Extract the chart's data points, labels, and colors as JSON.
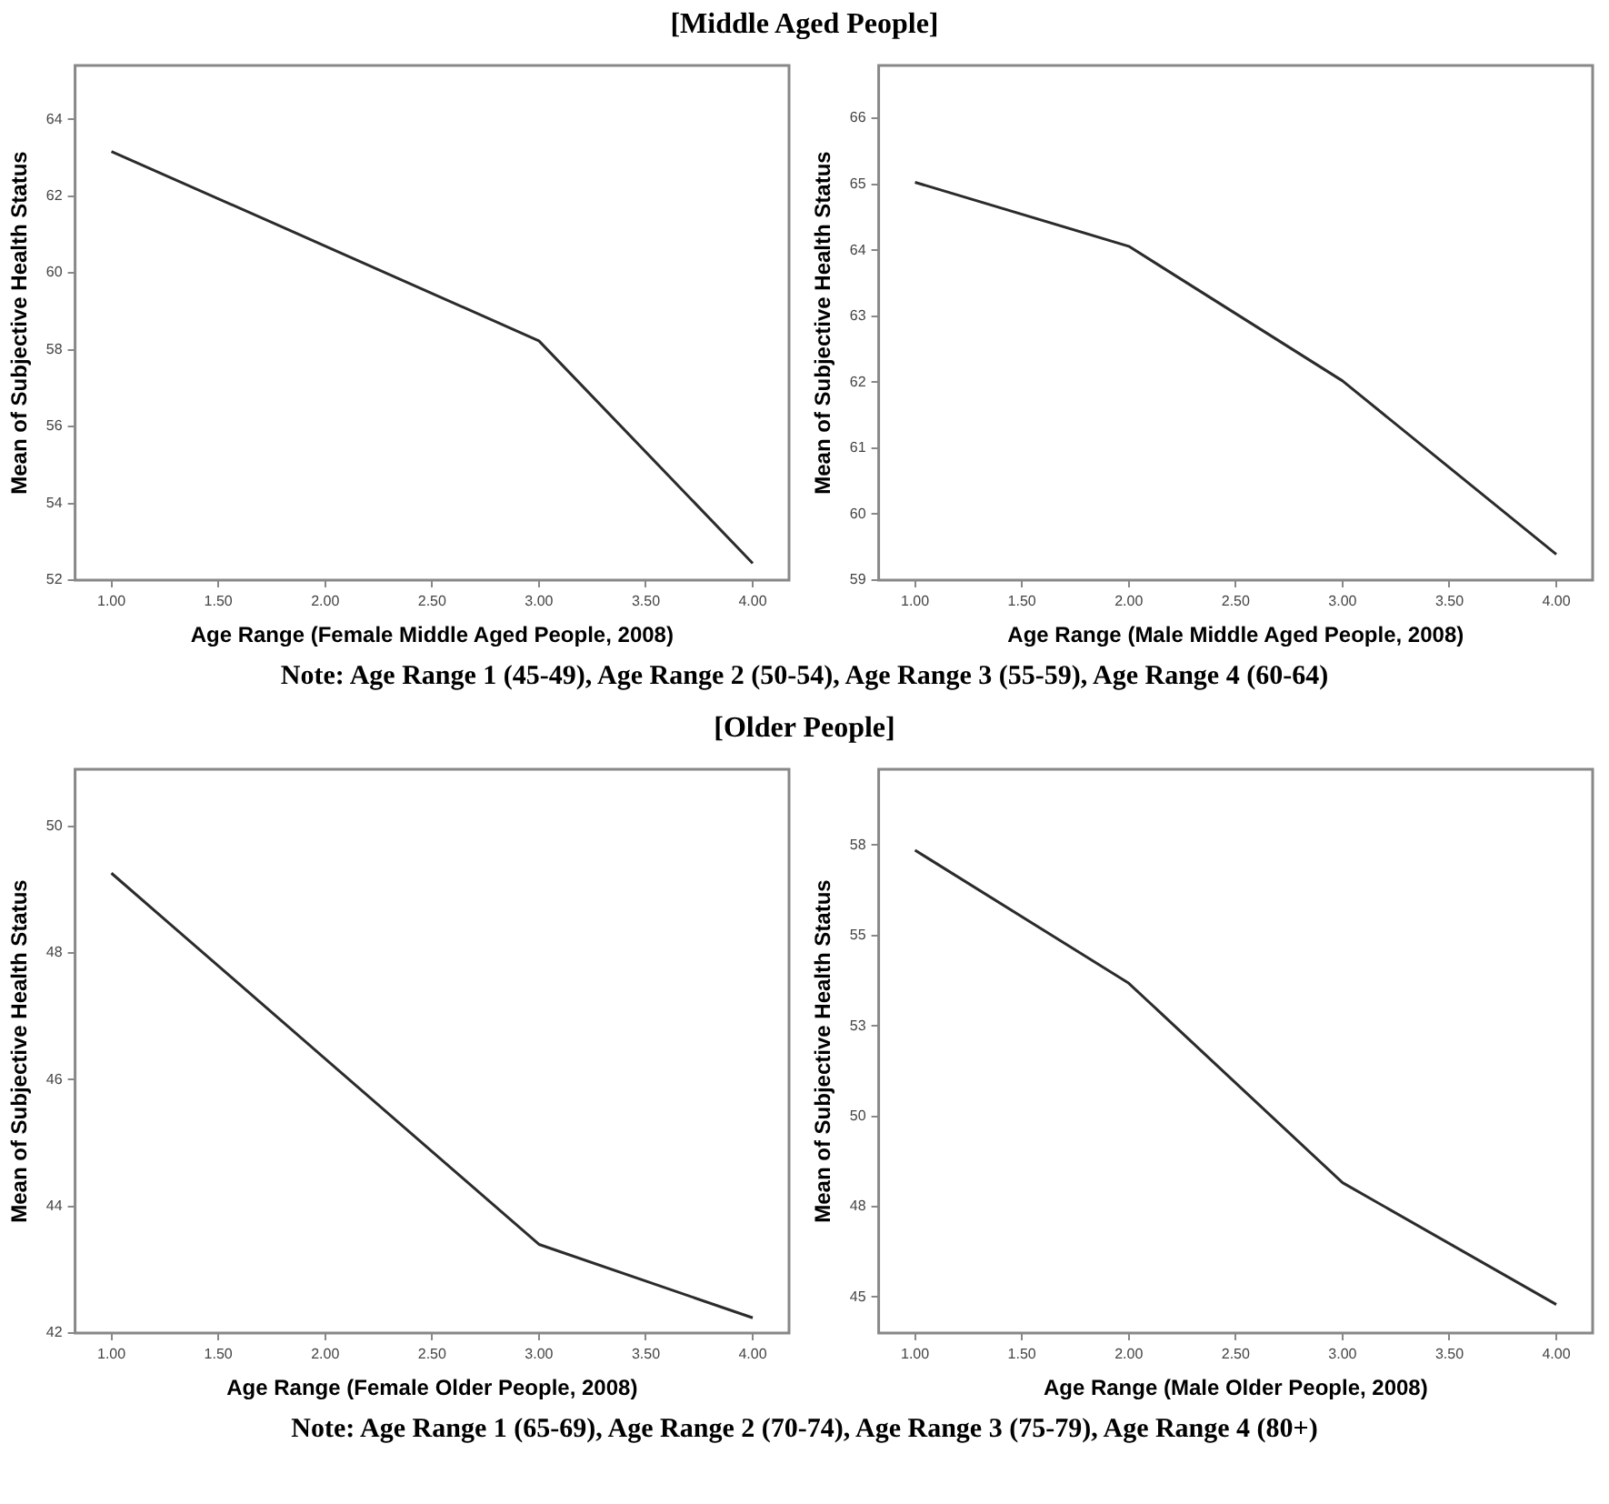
{
  "chart_data": [
    {
      "type": "line",
      "title": "[Middle Aged People]",
      "xlabel": "Age Range (Female Middle Aged People, 2008)",
      "ylabel": "Mean of Subjective Health Status",
      "x": [
        1,
        2,
        3,
        4
      ],
      "series": [
        {
          "color": "#2b2b2b",
          "values": [
            63.16,
            60.7,
            58.23,
            52.44
          ]
        }
      ],
      "xlim": [
        0.83,
        4.17
      ],
      "xticks": [
        {
          "value": 1,
          "label": "1.00"
        },
        {
          "value": 1.5,
          "label": "1.50"
        },
        {
          "value": 2,
          "label": "2.00"
        },
        {
          "value": 2.5,
          "label": "2.50"
        },
        {
          "value": 3,
          "label": "3.00"
        },
        {
          "value": 3.5,
          "label": "3.50"
        },
        {
          "value": 4,
          "label": "4.00"
        }
      ],
      "ylim": [
        52,
        65.4
      ],
      "yticks": [
        52,
        54,
        56,
        58,
        60,
        62,
        64
      ],
      "grid": false,
      "legend": false,
      "marker": "none",
      "line_style": "solid",
      "annotations": [
        "Note: Age Range 1 (45-49), Age Range 2 (50-54), Age Range 3 (55-59), Age Range 4 (60-64)"
      ]
    },
    {
      "type": "line",
      "xlabel": "Age Range (Male Middle Aged People, 2008)",
      "ylabel": "Mean of Subjective Health Status",
      "x": [
        1,
        2,
        3,
        4
      ],
      "series": [
        {
          "color": "#2b2b2b",
          "values": [
            65.03,
            64.06,
            62.02,
            59.39
          ]
        }
      ],
      "xlim": [
        0.83,
        4.17
      ],
      "xticks": [
        {
          "value": 1,
          "label": "1.00"
        },
        {
          "value": 1.5,
          "label": "1.50"
        },
        {
          "value": 2,
          "label": "2.00"
        },
        {
          "value": 2.5,
          "label": "2.50"
        },
        {
          "value": 3,
          "label": "3.00"
        },
        {
          "value": 3.5,
          "label": "3.50"
        },
        {
          "value": 4,
          "label": "4.00"
        }
      ],
      "ylim": [
        59,
        66.8
      ],
      "yticks": [
        59,
        60,
        61,
        62,
        63,
        64,
        65,
        66
      ],
      "grid": false,
      "legend": false,
      "marker": "none",
      "line_style": "solid"
    },
    {
      "type": "line",
      "title": "[Older People]",
      "xlabel": "Age Range (Female Older People, 2008)",
      "ylabel": "Mean of Subjective Health Status",
      "x": [
        1,
        2,
        3,
        4
      ],
      "series": [
        {
          "color": "#2b2b2b",
          "values": [
            49.26,
            46.33,
            43.4,
            42.24
          ]
        }
      ],
      "xlim": [
        0.83,
        4.17
      ],
      "xticks": [
        {
          "value": 1,
          "label": "1.00"
        },
        {
          "value": 1.5,
          "label": "1.50"
        },
        {
          "value": 2,
          "label": "2.00"
        },
        {
          "value": 2.5,
          "label": "2.50"
        },
        {
          "value": 3,
          "label": "3.00"
        },
        {
          "value": 3.5,
          "label": "3.50"
        },
        {
          "value": 4,
          "label": "4.00"
        }
      ],
      "ylim": [
        42,
        50.9
      ],
      "yticks": [
        42,
        44,
        46,
        48,
        50
      ],
      "grid": false,
      "legend": false,
      "marker": "none",
      "line_style": "solid",
      "annotations": [
        "Note: Age Range 1 (65-69), Age Range 2 (70-74), Age Range 3 (75-79), Age Range 4 (80+)"
      ]
    },
    {
      "type": "line",
      "xlabel": "Age Range (Male Older People, 2008)",
      "ylabel": "Mean of Subjective Health Status",
      "x": [
        1,
        2,
        3,
        4
      ],
      "series": [
        {
          "color": "#2b2b2b",
          "values": [
            57.36,
            53.68,
            48.16,
            44.79
          ]
        }
      ],
      "xlim": [
        0.83,
        4.17
      ],
      "xticks": [
        {
          "value": 1,
          "label": "1.00"
        },
        {
          "value": 1.5,
          "label": "1.50"
        },
        {
          "value": 2,
          "label": "2.00"
        },
        {
          "value": 2.5,
          "label": "2.50"
        },
        {
          "value": 3,
          "label": "3.00"
        },
        {
          "value": 3.5,
          "label": "3.50"
        },
        {
          "value": 4,
          "label": "4.00"
        }
      ],
      "ylim": [
        44,
        59.6
      ],
      "yticks": [
        {
          "value": 45,
          "label": "45"
        },
        {
          "value": 47.5,
          "label": "48"
        },
        {
          "value": 50,
          "label": "50"
        },
        {
          "value": 52.5,
          "label": "53"
        },
        {
          "value": 55,
          "label": "55"
        },
        {
          "value": 57.5,
          "label": "58"
        }
      ],
      "grid": false,
      "legend": false,
      "marker": "none",
      "line_style": "solid"
    }
  ]
}
